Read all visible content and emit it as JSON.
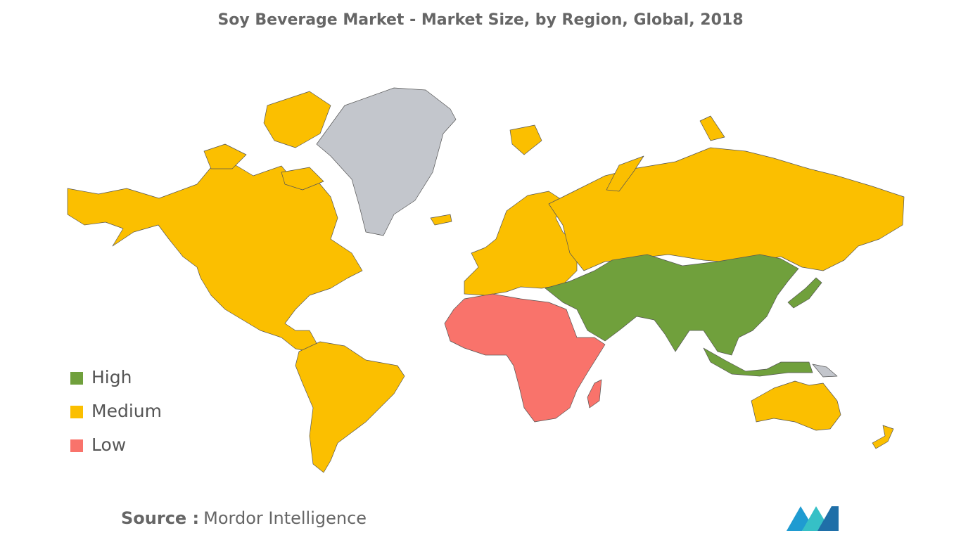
{
  "title": "Soy Beverage Market - Market Size, by Region, Global, 2018",
  "legend": [
    {
      "label": "High",
      "color": "#70a03c"
    },
    {
      "label": "Medium",
      "color": "#fbbf00"
    },
    {
      "label": "Low",
      "color": "#f9736b"
    }
  ],
  "source": {
    "label": "Source :",
    "text": "Mordor Intelligence"
  }
}
